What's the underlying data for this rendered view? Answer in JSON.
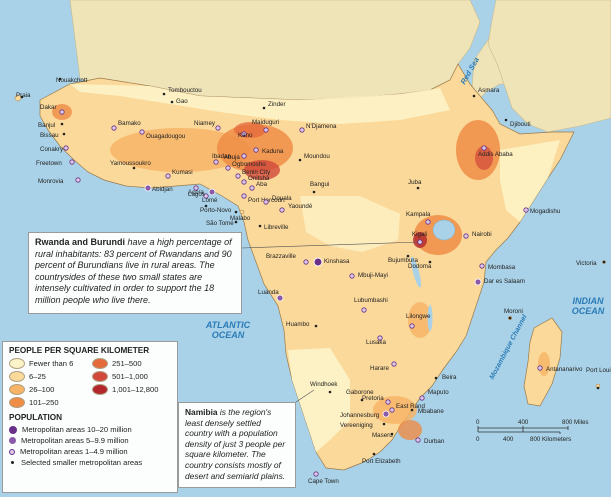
{
  "colors": {
    "ocean": "#a9d2e8",
    "outside_land": "#efe3b8",
    "density": [
      "#fdf3c8",
      "#fbd99a",
      "#f7b467",
      "#ef8c45",
      "#e46a3c",
      "#d2493b",
      "#b3262c"
    ]
  },
  "oceans": {
    "atlantic": [
      "ATLANTIC",
      "OCEAN"
    ],
    "indian": [
      "INDIAN",
      "OCEAN"
    ],
    "red_sea": "Red Sea",
    "mozambique": "Mozambique Channel"
  },
  "cities": [
    {
      "name": "Nouakchott",
      "type": "small"
    },
    {
      "name": "Praia",
      "type": "small"
    },
    {
      "name": "Dakar",
      "type": "m1"
    },
    {
      "name": "Banjul",
      "type": "small"
    },
    {
      "name": "Bissau",
      "type": "small"
    },
    {
      "name": "Conakry",
      "type": "m1"
    },
    {
      "name": "Freetown",
      "type": "m1"
    },
    {
      "name": "Monrovia",
      "type": "m1"
    },
    {
      "name": "Bamako",
      "type": "m1"
    },
    {
      "name": "Tombouctou",
      "type": "small"
    },
    {
      "name": "Gao",
      "type": "small"
    },
    {
      "name": "Ouagadougou",
      "type": "m1"
    },
    {
      "name": "Yamoussoukro",
      "type": "small"
    },
    {
      "name": "Abidjan",
      "type": "m2"
    },
    {
      "name": "Kumasi",
      "type": "m1"
    },
    {
      "name": "Accra",
      "type": "m1"
    },
    {
      "name": "Lomé",
      "type": "m1"
    },
    {
      "name": "Porto-Novo",
      "type": "small"
    },
    {
      "name": "Lagos",
      "type": "m2"
    },
    {
      "name": "Ibadan",
      "type": "m1"
    },
    {
      "name": "Ogbomosho",
      "type": "m1"
    },
    {
      "name": "Benin City",
      "type": "m1"
    },
    {
      "name": "Onitsha",
      "type": "m1"
    },
    {
      "name": "Aba",
      "type": "m1"
    },
    {
      "name": "Port Harcourt",
      "type": "m1"
    },
    {
      "name": "Malabo",
      "type": "small"
    },
    {
      "name": "São Tomé",
      "type": "small"
    },
    {
      "name": "Niamey",
      "type": "m1"
    },
    {
      "name": "Zinder",
      "type": "small"
    },
    {
      "name": "Kano",
      "type": "m1"
    },
    {
      "name": "Maiduguri",
      "type": "m1"
    },
    {
      "name": "Kaduna",
      "type": "m1"
    },
    {
      "name": "Abuja",
      "type": "m1"
    },
    {
      "name": "N'Djamena",
      "type": "m1"
    },
    {
      "name": "Moundou",
      "type": "small"
    },
    {
      "name": "Douala",
      "type": "m1"
    },
    {
      "name": "Yaoundé",
      "type": "m1"
    },
    {
      "name": "Bangui",
      "type": "small"
    },
    {
      "name": "Libreville",
      "type": "small"
    },
    {
      "name": "Brazzaville",
      "type": "m1"
    },
    {
      "name": "Kinshasa",
      "type": "m3"
    },
    {
      "name": "Luanda",
      "type": "m2"
    },
    {
      "name": "Huambo",
      "type": "small"
    },
    {
      "name": "Mbuji-Mayi",
      "type": "m1"
    },
    {
      "name": "Lubumbashi",
      "type": "m1"
    },
    {
      "name": "Bujumbura",
      "type": "small"
    },
    {
      "name": "Kigali",
      "type": "m1"
    },
    {
      "name": "Kampala",
      "type": "m1"
    },
    {
      "name": "Nairobi",
      "type": "m1"
    },
    {
      "name": "Mombasa",
      "type": "m1"
    },
    {
      "name": "Dodoma",
      "type": "small"
    },
    {
      "name": "Dar es Salaam",
      "type": "m2"
    },
    {
      "name": "Lilongwe",
      "type": "m1"
    },
    {
      "name": "Lusaka",
      "type": "m1"
    },
    {
      "name": "Harare",
      "type": "m1"
    },
    {
      "name": "Beira",
      "type": "small"
    },
    {
      "name": "Windhoek",
      "type": "small"
    },
    {
      "name": "Gaborone",
      "type": "small"
    },
    {
      "name": "Pretoria",
      "type": "m1"
    },
    {
      "name": "Johannesburg",
      "type": "m2"
    },
    {
      "name": "Vereeniging",
      "type": "small"
    },
    {
      "name": "East Rand",
      "type": "m1"
    },
    {
      "name": "Maputo",
      "type": "m1"
    },
    {
      "name": "Mbabane",
      "type": "small"
    },
    {
      "name": "Maseru",
      "type": "small"
    },
    {
      "name": "Durban",
      "type": "m1"
    },
    {
      "name": "Cape Town",
      "type": "m1"
    },
    {
      "name": "Port Elizabeth",
      "type": "small"
    },
    {
      "name": "Juba",
      "type": "small"
    },
    {
      "name": "Asmara",
      "type": "small"
    },
    {
      "name": "Djibouti",
      "type": "small"
    },
    {
      "name": "Addis Ababa",
      "type": "m1"
    },
    {
      "name": "Mogadishu",
      "type": "m1"
    },
    {
      "name": "Moroni",
      "type": "small"
    },
    {
      "name": "Victoria",
      "type": "small"
    },
    {
      "name": "Antananarivo",
      "type": "m1"
    },
    {
      "name": "Port Louis",
      "type": "small"
    }
  ],
  "callouts": {
    "rwanda": {
      "title": "Rwanda and Burundi",
      "text": "have a high percentage of rural inhabitants: 83 percent of Rwandans and 90 percent of Burundians live in rural areas. The countrysides of these two small states are intensely cultivated in order to support the 18 million people who live there."
    },
    "namibia": {
      "title": "Namibia",
      "text": "is the region's least densely settled country with a population density of just 3 people per square kilometer. The country consists mostly of desert and semiarid plains."
    }
  },
  "legend": {
    "title": "PEOPLE PER SQUARE KILOMETER",
    "density": [
      {
        "label": "Fewer than 6",
        "color": "#fdf3c8"
      },
      {
        "label": "251–500",
        "color": "#e46a3c"
      },
      {
        "label": "6–25",
        "color": "#fbd99a"
      },
      {
        "label": "501–1,000",
        "color": "#d2493b"
      },
      {
        "label": "26–100",
        "color": "#f7b467"
      },
      {
        "label": "1,001–12,800",
        "color": "#b3262c"
      },
      {
        "label": "101–250",
        "color": "#ef8c45"
      }
    ],
    "population_title": "POPULATION",
    "population": [
      {
        "label": "Metropolitan areas 10–20 million",
        "type": "m3"
      },
      {
        "label": "Metropolitan areas 5–9.9 million",
        "type": "m2"
      },
      {
        "label": "Metropolitan areas 1–4.9 million",
        "type": "m1"
      },
      {
        "label": "Selected smaller metropolitan areas",
        "type": "small"
      }
    ]
  },
  "scale": {
    "miles": [
      "0",
      "400",
      "800 Miles"
    ],
    "km": [
      "0",
      "400",
      "800 Kilometers"
    ]
  }
}
